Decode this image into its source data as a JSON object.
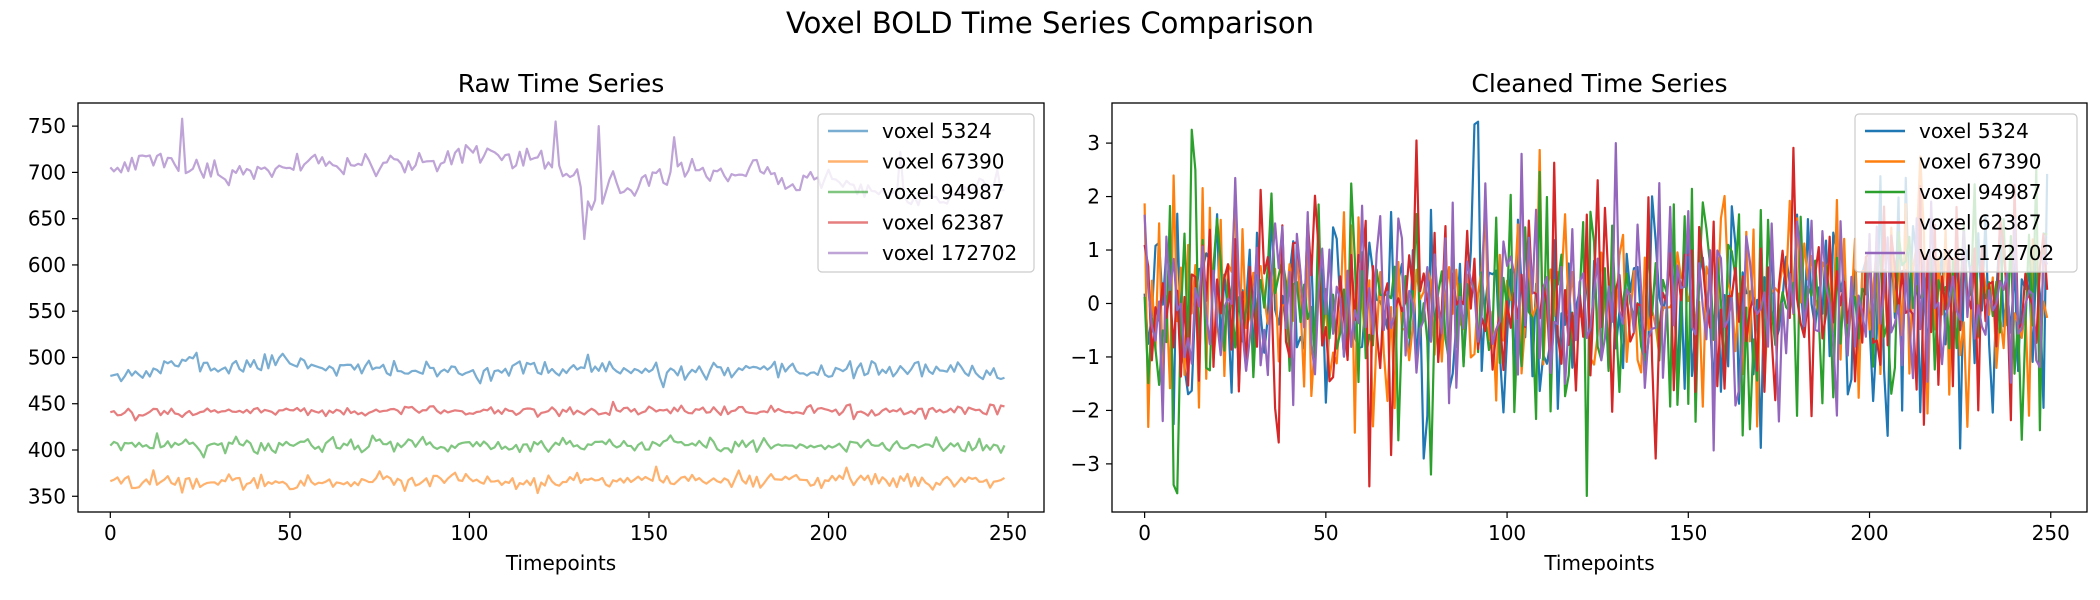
{
  "figure": {
    "title": "Voxel BOLD Time Series Comparison"
  },
  "colors": {
    "voxel_5324": "#1f77b4",
    "voxel_67390": "#ff7f0e",
    "voxel_94987": "#2ca02c",
    "voxel_62387": "#d62728",
    "voxel_172702": "#9467bd"
  },
  "chart_data": [
    {
      "type": "line",
      "title": "Raw Time Series",
      "xlabel": "Timepoints",
      "ylabel": "",
      "xlim": [
        -9,
        260
      ],
      "ylim": [
        333,
        775
      ],
      "xticks": [
        0,
        50,
        100,
        150,
        200,
        250
      ],
      "yticks": [
        350,
        400,
        450,
        500,
        550,
        600,
        650,
        700,
        750
      ],
      "n_points": 250,
      "line_alpha": 0.6,
      "legend": "top-right",
      "series": [
        {
          "name": "voxel 5324",
          "color": "#1f77b4",
          "anchors": {
            "x": [
              0,
              10,
              20,
              30,
              40,
              50,
              60,
              80,
              100,
              120,
              140,
              150,
              160,
              180,
              200,
              220,
              240,
              249
            ],
            "y": [
              485,
              482,
              496,
              488,
              492,
              497,
              490,
              486,
              484,
              488,
              487,
              482,
              485,
              484,
              486,
              487,
              484,
              482
            ]
          },
          "noise": 8,
          "seed": 11,
          "spikes": [
            [
              24,
              505
            ],
            [
              48,
              504
            ],
            [
              133,
              503
            ],
            [
              154,
              468
            ]
          ]
        },
        {
          "name": "voxel 67390",
          "color": "#ff7f0e",
          "anchors": {
            "x": [
              0,
              50,
              100,
              150,
              200,
              249
            ],
            "y": [
              366,
              366,
              366,
              367,
              367,
              366
            ]
          },
          "noise": 7,
          "seed": 22,
          "spikes": [
            [
              152,
              382
            ],
            [
              205,
              381
            ],
            [
              75,
              377
            ]
          ]
        },
        {
          "name": "voxel 94987",
          "color": "#2ca02c",
          "anchors": {
            "x": [
              0,
              50,
              100,
              150,
              200,
              249
            ],
            "y": [
              405,
              405,
              406,
              405,
              405,
              405
            ]
          },
          "noise": 7,
          "seed": 33,
          "spikes": [
            [
              13,
              418
            ],
            [
              26,
              392
            ],
            [
              62,
              414
            ],
            [
              248,
              397
            ]
          ]
        },
        {
          "name": "voxel 62387",
          "color": "#d62728",
          "anchors": {
            "x": [
              0,
              50,
              100,
              150,
              200,
              249
            ],
            "y": [
              440,
              442,
              442,
              441,
              442,
              443
            ]
          },
          "noise": 5,
          "seed": 44,
          "spikes": [
            [
              140,
              452
            ],
            [
              7,
              432
            ]
          ]
        },
        {
          "name": "voxel 172702",
          "color": "#9467bd",
          "anchors": {
            "x": [
              0,
              10,
              20,
              30,
              40,
              50,
              60,
              70,
              80,
              90,
              100,
              110,
              120,
              125,
              130,
              135,
              140,
              145,
              150,
              155,
              160,
              170,
              180,
              190,
              200,
              210,
              220,
              230,
              240,
              249
            ],
            "y": [
              700,
              712,
              705,
              700,
              702,
              705,
              707,
              710,
              712,
              714,
              720,
              715,
              712,
              705,
              690,
              665,
              690,
              680,
              700,
              695,
              710,
              695,
              700,
              690,
              695,
              680,
              670,
              670,
              688,
              690
            ]
          },
          "noise": 11,
          "seed": 55,
          "spikes": [
            [
              20,
              758
            ],
            [
              124,
              755
            ],
            [
              132,
              628
            ],
            [
              136,
              750
            ],
            [
              157,
              738
            ],
            [
              220,
              722
            ]
          ]
        }
      ]
    },
    {
      "type": "line",
      "title": "Cleaned Time Series",
      "xlabel": "Timepoints",
      "ylabel": "",
      "xlim": [
        -9,
        260
      ],
      "ylim": [
        -3.9,
        3.75
      ],
      "xticks": [
        0,
        50,
        100,
        150,
        200,
        250
      ],
      "yticks": [
        -3,
        -2,
        -1,
        0,
        1,
        2,
        3
      ],
      "n_points": 250,
      "line_alpha": 1.0,
      "legend": "top-right",
      "series": [
        {
          "name": "voxel 5324",
          "color": "#1f77b4",
          "amp": 1.05,
          "seed": 101,
          "spikes": [
            [
              91,
              3.35
            ],
            [
              77,
              -2.9
            ],
            [
              170,
              -2.7
            ]
          ]
        },
        {
          "name": "voxel 67390",
          "color": "#ff7f0e",
          "amp": 1.0,
          "seed": 202,
          "spikes": [
            [
              214,
              2.75
            ],
            [
              244,
              -2.1
            ],
            [
              63,
              -2.3
            ]
          ]
        },
        {
          "name": "voxel 94987",
          "color": "#2ca02c",
          "amp": 1.05,
          "seed": 303,
          "spikes": [
            [
              13,
              3.25
            ],
            [
              9,
              -3.55
            ],
            [
              79,
              -3.2
            ],
            [
              242,
              -2.55
            ]
          ]
        },
        {
          "name": "voxel 62387",
          "color": "#d62728",
          "amp": 1.0,
          "seed": 404,
          "spikes": [
            [
              75,
              3.05
            ],
            [
              141,
              -2.9
            ],
            [
              37,
              -2.6
            ]
          ]
        },
        {
          "name": "voxel 172702",
          "color": "#9467bd",
          "amp": 1.0,
          "seed": 505,
          "spikes": [
            [
              104,
              2.8
            ],
            [
              130,
              3.0
            ],
            [
              157,
              -2.75
            ],
            [
              5,
              -2.2
            ]
          ]
        }
      ]
    }
  ]
}
